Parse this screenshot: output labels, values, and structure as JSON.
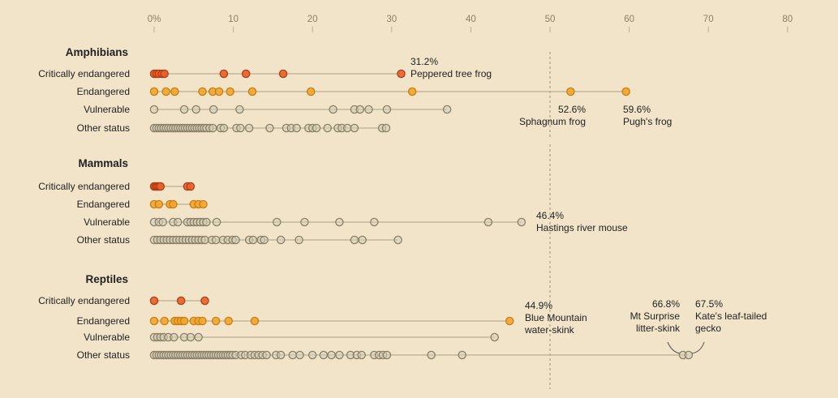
{
  "colors": {
    "background": "#f1e4c9",
    "critically_endangered": "#e8622a",
    "critically_endangered_stroke": "#b33a12",
    "endangered": "#f2a62c",
    "endangered_stroke": "#c77d12",
    "vulnerable": "#d6cdb6",
    "vulnerable_stroke": "#8a8068",
    "other": "#d6cdb6",
    "other_stroke": "#8a8068",
    "axis_text": "#8a8068",
    "label_text": "#222222"
  },
  "chart_data": {
    "type": "scatter",
    "subtype": "dot-strip",
    "xlim": [
      0,
      80
    ],
    "x_ticks": [
      0,
      10,
      20,
      30,
      40,
      50,
      60,
      70,
      80
    ],
    "x_tick_labels": [
      "0%",
      "10",
      "20",
      "30",
      "40",
      "50",
      "60",
      "70",
      "80"
    ],
    "reference_line": 50,
    "groups": [
      {
        "name": "Amphibians",
        "rows": [
          {
            "label": "Critically endangered",
            "status": "critically_endangered",
            "values": [
              0,
              0.3,
              0.6,
              1,
              1.3,
              8.8,
              11.6,
              16.3,
              31.2
            ]
          },
          {
            "label": "Endangered",
            "status": "endangered",
            "values": [
              0,
              1.5,
              2.6,
              6.1,
              7.4,
              8.2,
              9.6,
              12.4,
              19.8,
              32.6,
              52.6,
              59.6
            ]
          },
          {
            "label": "Vulnerable",
            "status": "vulnerable",
            "values": [
              0,
              3.8,
              5.3,
              7.5,
              10.8,
              22.6,
              25.3,
              26,
              27.1,
              29.4,
              37
            ]
          },
          {
            "label": "Other status",
            "status": "other",
            "values": [
              0,
              0.3,
              0.6,
              0.9,
              1.2,
              1.5,
              1.8,
              2.1,
              2.4,
              2.7,
              3,
              3.3,
              3.6,
              3.9,
              4.2,
              4.5,
              4.8,
              5.1,
              5.4,
              5.7,
              6,
              6.3,
              6.6,
              7,
              7.4,
              8.4,
              8.8,
              10.4,
              10.9,
              12,
              14.6,
              16.7,
              17.3,
              18,
              19.5,
              20,
              20.5,
              21.9,
              23.2,
              23.7,
              24.4,
              25.3,
              28.8,
              29.3
            ]
          }
        ]
      },
      {
        "name": "Mammals",
        "rows": [
          {
            "label": "Critically endangered",
            "status": "critically_endangered",
            "values": [
              0,
              0.2,
              0.4,
              0.6,
              0.8,
              4.2,
              4.6
            ]
          },
          {
            "label": "Endangered",
            "status": "endangered",
            "values": [
              0,
              0.6,
              2,
              2.4,
              5,
              5.6,
              6.2
            ]
          },
          {
            "label": "Vulnerable",
            "status": "vulnerable",
            "values": [
              0,
              0.6,
              1.1,
              2.4,
              3,
              4.2,
              4.6,
              5,
              5.4,
              5.8,
              6.2,
              6.6,
              7.9,
              15.5,
              19,
              23.4,
              27.8,
              42.2,
              46.4
            ]
          },
          {
            "label": "Other status",
            "status": "other",
            "values": [
              0,
              0.4,
              0.8,
              1.2,
              1.6,
              2,
              2.4,
              2.8,
              3.2,
              3.6,
              4,
              4.4,
              4.8,
              5.2,
              5.6,
              6,
              6.4,
              7.3,
              7.8,
              8.7,
              9.3,
              9.9,
              10.3,
              12,
              12.5,
              13.5,
              13.9,
              16,
              18.3,
              25.3,
              26.3,
              30.8
            ]
          }
        ]
      },
      {
        "name": "Reptiles",
        "rows": [
          {
            "label": "Critically endangered",
            "status": "critically_endangered",
            "values": [
              0,
              3.4,
              6.4
            ]
          },
          {
            "label": "Endangered",
            "status": "endangered",
            "values": [
              0,
              1.3,
              2.6,
              3,
              3.4,
              3.8,
              5,
              5.6,
              6.1,
              7.8,
              9.4,
              12.7,
              44.9
            ]
          },
          {
            "label": "Vulnerable",
            "status": "vulnerable",
            "values": [
              0,
              0.4,
              0.8,
              1.2,
              1.8,
              2.5,
              3.8,
              4.6,
              5.6,
              43
            ]
          },
          {
            "label": "Other status",
            "status": "other",
            "values": [
              0,
              0.3,
              0.6,
              0.9,
              1.2,
              1.5,
              1.8,
              2.1,
              2.4,
              2.7,
              3,
              3.3,
              3.6,
              3.9,
              4.2,
              4.5,
              4.8,
              5.1,
              5.4,
              5.7,
              6,
              6.3,
              6.6,
              6.9,
              7.2,
              7.5,
              7.8,
              8.1,
              8.4,
              8.7,
              9,
              9.3,
              9.6,
              9.9,
              10.3,
              11,
              11.5,
              12.2,
              12.7,
              13.2,
              13.7,
              14.2,
              15.4,
              16,
              17.5,
              18.4,
              20,
              21.4,
              22.4,
              23.4,
              24.8,
              25.6,
              26.2,
              27.8,
              28.4,
              28.9,
              29.4,
              35,
              38.9,
              66.8,
              67.5
            ]
          }
        ]
      }
    ],
    "annotations": [
      {
        "value": "31.2%",
        "lines": [
          "Peppered tree frog"
        ]
      },
      {
        "value": "52.6%",
        "lines": [
          "Sphagnum frog"
        ]
      },
      {
        "value": "59.6%",
        "lines": [
          "Pugh's frog"
        ]
      },
      {
        "value": "46.4%",
        "lines": [
          "Hastings river mouse"
        ]
      },
      {
        "value": "44.9%",
        "lines": [
          "Blue Mountain",
          "water-skink"
        ]
      },
      {
        "value": "66.8%",
        "lines": [
          "Mt Surprise",
          "litter-skink"
        ]
      },
      {
        "value": "67.5%",
        "lines": [
          "Kate's leaf-tailed",
          "gecko"
        ]
      }
    ]
  }
}
